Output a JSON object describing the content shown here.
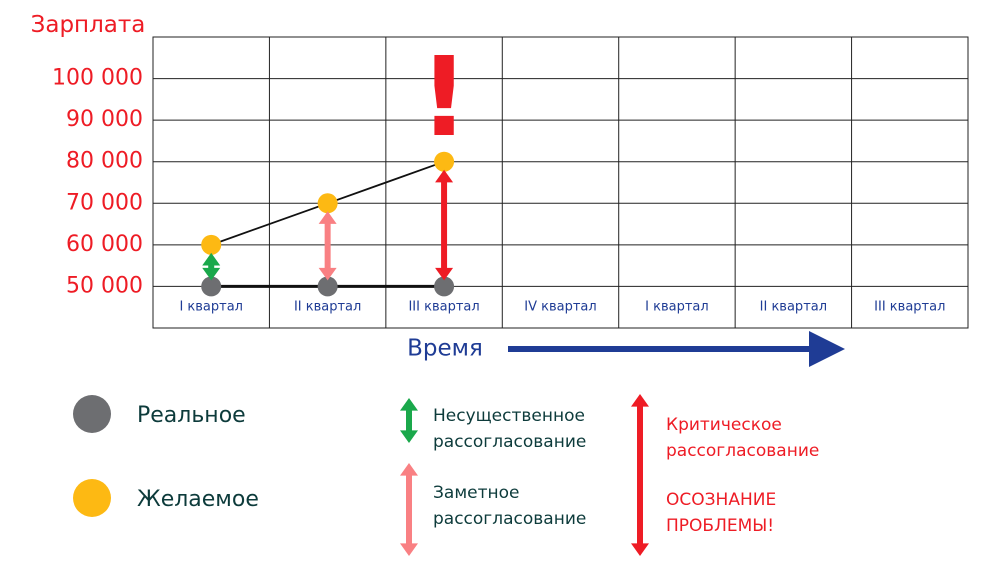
{
  "chart_data": {
    "type": "line",
    "ylabel": "Зарплата",
    "xlabel": "Время",
    "categories": [
      "I квартал",
      "II квартал",
      "III квартал",
      "IV квартал",
      "I квартал",
      "II квартал",
      "III квартал"
    ],
    "series": [
      {
        "name": "Реальное",
        "color": "#6d6e71",
        "values": [
          50000,
          50000,
          50000,
          null,
          null,
          null,
          null
        ]
      },
      {
        "name": "Желаемое",
        "color": "#fdb913",
        "values": [
          60000,
          70000,
          80000,
          null,
          null,
          null,
          null
        ]
      }
    ],
    "gaps": [
      {
        "name": "Несущественное рассогласование",
        "color": "#1aa84b"
      },
      {
        "name": "Заметное рассогласование",
        "color": "#f98083"
      },
      {
        "name": "Критическое рассогласование",
        "color": "#ee1c25"
      }
    ],
    "annotation": "!",
    "note": "ОСОЗНАНИЕ ПРОБЛЕМЫ!",
    "ylim": [
      40000,
      110000
    ],
    "yticks": [
      {
        "value": 50000,
        "label": "50 000"
      },
      {
        "value": 60000,
        "label": "60 000"
      },
      {
        "value": 70000,
        "label": "70 000"
      },
      {
        "value": 80000,
        "label": "80 000"
      },
      {
        "value": 90000,
        "label": "90 000"
      },
      {
        "value": 100000,
        "label": "100 000"
      }
    ],
    "grid": true
  }
}
